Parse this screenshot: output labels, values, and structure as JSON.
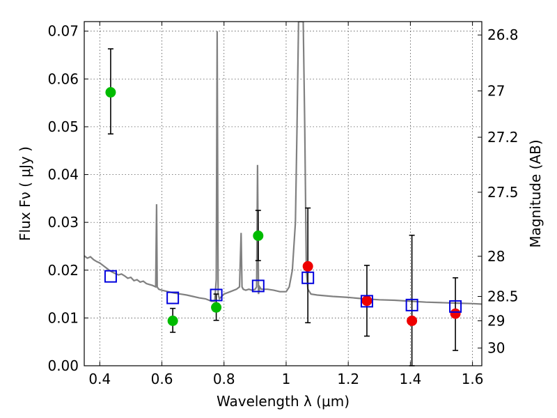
{
  "chart_data": {
    "type": "scatter",
    "xlabel": "Wavelength  λ (μm)",
    "ylabel": "Flux  Fν  ( μJy )",
    "y2label": "Magnitude (AB)",
    "xlim": [
      0.35,
      1.63
    ],
    "ylim": [
      0.0,
      0.072
    ],
    "grid": true,
    "x_ticks": [
      0.4,
      0.6,
      0.8,
      1.0,
      1.2,
      1.4,
      1.6
    ],
    "x_tick_labels": [
      "0.4",
      "0.6",
      "0.8",
      "1",
      "1.2",
      "1.4",
      "1.6"
    ],
    "y_ticks": [
      0.0,
      0.01,
      0.02,
      0.03,
      0.04,
      0.05,
      0.06,
      0.07
    ],
    "y_tick_labels": [
      "0.00",
      "0.01",
      "0.02",
      "0.03",
      "0.04",
      "0.05",
      "0.06",
      "0.07"
    ],
    "y2_ticks": [
      {
        "label": "26.8",
        "flux": 0.0692
      },
      {
        "label": "27",
        "flux": 0.0575
      },
      {
        "label": "27.2",
        "flux": 0.0478
      },
      {
        "label": "27.5",
        "flux": 0.0363
      },
      {
        "label": "28",
        "flux": 0.0229
      },
      {
        "label": "28.5",
        "flux": 0.0145
      },
      {
        "label": "29",
        "flux": 0.0094
      },
      {
        "label": "30",
        "flux": 0.0037
      }
    ],
    "series": [
      {
        "marker": "circle",
        "color": "#00bb00",
        "points": [
          {
            "x": 0.435,
            "y": 0.0572,
            "err_low": 0.0485,
            "err_high": 0.0663
          },
          {
            "x": 0.635,
            "y": 0.0094,
            "err_low": 0.007,
            "err_high": 0.012
          },
          {
            "x": 0.775,
            "y": 0.0122,
            "err_low": 0.0095,
            "err_high": 0.015
          },
          {
            "x": 0.91,
            "y": 0.0272,
            "err_low": 0.022,
            "err_high": 0.0325
          }
        ]
      },
      {
        "marker": "circle",
        "color": "#ee0000",
        "points": [
          {
            "x": 1.07,
            "y": 0.0208,
            "err_low": 0.009,
            "err_high": 0.033
          },
          {
            "x": 1.26,
            "y": 0.0136,
            "err_low": 0.0062,
            "err_high": 0.021
          },
          {
            "x": 1.405,
            "y": 0.0094,
            "err_low": 0.0,
            "err_high": 0.0273
          },
          {
            "x": 1.545,
            "y": 0.0109,
            "err_low": 0.0032,
            "err_high": 0.0184
          }
        ]
      },
      {
        "marker": "square",
        "color": "#0000dd",
        "points": [
          {
            "x": 0.435,
            "y": 0.0187
          },
          {
            "x": 0.635,
            "y": 0.0142
          },
          {
            "x": 0.775,
            "y": 0.0148
          },
          {
            "x": 0.91,
            "y": 0.0167
          },
          {
            "x": 1.07,
            "y": 0.0184
          },
          {
            "x": 1.26,
            "y": 0.0135
          },
          {
            "x": 1.405,
            "y": 0.0127
          },
          {
            "x": 1.545,
            "y": 0.0124
          }
        ]
      }
    ],
    "model_spectrum": {
      "color": "#808080",
      "x": [
        0.35,
        0.36,
        0.37,
        0.38,
        0.39,
        0.4,
        0.41,
        0.42,
        0.43,
        0.44,
        0.45,
        0.46,
        0.47,
        0.48,
        0.49,
        0.5,
        0.51,
        0.52,
        0.53,
        0.54,
        0.55,
        0.56,
        0.57,
        0.58,
        0.583,
        0.585,
        0.587,
        0.59,
        0.6,
        0.62,
        0.64,
        0.66,
        0.68,
        0.7,
        0.72,
        0.74,
        0.76,
        0.77,
        0.775,
        0.778,
        0.781,
        0.785,
        0.8,
        0.82,
        0.84,
        0.85,
        0.855,
        0.858,
        0.862,
        0.87,
        0.88,
        0.89,
        0.9,
        0.905,
        0.908,
        0.911,
        0.915,
        0.92,
        0.94,
        0.96,
        0.98,
        1.0,
        1.01,
        1.02,
        1.03,
        1.035,
        1.04,
        1.045,
        1.05,
        1.055,
        1.06,
        1.065,
        1.07,
        1.08,
        1.1,
        1.15,
        1.2,
        1.25,
        1.3,
        1.35,
        1.4,
        1.45,
        1.5,
        1.55,
        1.6,
        1.63
      ],
      "y": [
        0.023,
        0.0225,
        0.0228,
        0.0222,
        0.0218,
        0.0215,
        0.021,
        0.0205,
        0.02,
        0.0196,
        0.0193,
        0.019,
        0.0192,
        0.0188,
        0.0183,
        0.0185,
        0.0178,
        0.018,
        0.0175,
        0.0177,
        0.0172,
        0.017,
        0.0168,
        0.0165,
        0.0338,
        0.0165,
        0.0163,
        0.016,
        0.0158,
        0.0155,
        0.0152,
        0.015,
        0.0148,
        0.0145,
        0.0142,
        0.014,
        0.0135,
        0.0135,
        0.018,
        0.07,
        0.015,
        0.014,
        0.015,
        0.0155,
        0.016,
        0.0165,
        0.0278,
        0.0165,
        0.016,
        0.0158,
        0.016,
        0.0158,
        0.016,
        0.0165,
        0.042,
        0.015,
        0.0165,
        0.016,
        0.016,
        0.0158,
        0.0155,
        0.0155,
        0.0165,
        0.02,
        0.03,
        0.05,
        0.072,
        0.072,
        0.072,
        0.072,
        0.05,
        0.02,
        0.016,
        0.015,
        0.0148,
        0.0145,
        0.0143,
        0.014,
        0.0138,
        0.0137,
        0.0135,
        0.0133,
        0.0132,
        0.0131,
        0.013,
        0.0129
      ]
    }
  }
}
